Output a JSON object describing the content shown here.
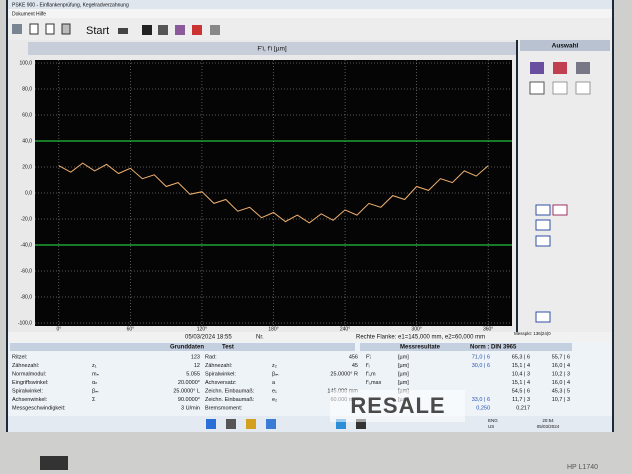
{
  "window": {
    "title": "PSKE 900 - Einflankenprüfung, Kegelradverzahnung",
    "menu": [
      "Dokument",
      "Hilfe"
    ],
    "start": "Start"
  },
  "chart_data": {
    "type": "line",
    "title": "F'i, f'i  [µm]",
    "x": [
      0,
      10,
      20,
      30,
      40,
      50,
      60,
      70,
      80,
      90,
      100,
      110,
      120,
      130,
      140,
      150,
      160,
      170,
      180,
      190,
      200,
      210,
      220,
      230,
      240,
      250,
      260,
      270,
      280,
      290,
      300,
      310,
      320,
      330,
      340,
      350,
      360
    ],
    "values": [
      21,
      16,
      23,
      17,
      22,
      15,
      19,
      11,
      14,
      5,
      8,
      -1,
      1,
      -8,
      -5,
      -14,
      -11,
      -19,
      -15,
      -22,
      -17,
      -23,
      -16,
      -21,
      -13,
      -17,
      -8,
      -11,
      -2,
      -5,
      5,
      2,
      11,
      8,
      17,
      13,
      21
    ],
    "color": "#f0b070",
    "tolerance_lines": [
      40,
      -40
    ],
    "tolerance_color": "#22c03a",
    "xlim": [
      -20,
      380
    ],
    "ylim": [
      -100,
      100
    ],
    "xticks": [
      {
        "value": 0,
        "label": "0°"
      },
      {
        "value": 60,
        "label": "60°"
      },
      {
        "value": 120,
        "label": "120°"
      },
      {
        "value": 180,
        "label": "180°"
      },
      {
        "value": 240,
        "label": "240°"
      },
      {
        "value": 300,
        "label": "300°"
      },
      {
        "value": 360,
        "label": "360°"
      }
    ],
    "yticks": [
      {
        "value": 100,
        "label": "100,0"
      },
      {
        "value": 80,
        "label": "80,0"
      },
      {
        "value": 60,
        "label": "60,0"
      },
      {
        "value": 40,
        "label": "40,0"
      },
      {
        "value": 20,
        "label": "20,0"
      },
      {
        "value": 0,
        "label": "0,0"
      },
      {
        "value": -20,
        "label": "-20,0"
      },
      {
        "value": -40,
        "label": "-40,0"
      },
      {
        "value": -60,
        "label": "-60,0"
      },
      {
        "value": -80,
        "label": "-80,0"
      },
      {
        "value": -100,
        "label": "-100,0"
      }
    ],
    "grid": true
  },
  "info": {
    "date": "05/03/2024    18:55",
    "nr": "Nr.",
    "flank": "Rechte Flanke: e1=145,000 mm, e2=60,000 mm",
    "messpkt": "Messpkt: 136|24|0"
  },
  "side_panel": {
    "title": "Auswahl"
  },
  "basic_data": {
    "header": [
      "Grunddaten",
      "Test"
    ],
    "rows": [
      {
        "l1": "Ritzel:",
        "v1": "123",
        "l2": "Rad:",
        "v2": "456"
      },
      {
        "l1": "Zähnezahl:",
        "s1": "z₁",
        "v1": "12",
        "l2": "Zähnezahl:",
        "s2": "z₂",
        "v2": "45"
      },
      {
        "l1": "Normalmodul:",
        "s1": "mₙ",
        "v1": "5.055",
        "l2": "Spiralwinkel:",
        "s2": "βₘ",
        "v2": "25.0000° R"
      },
      {
        "l1": "Eingriffswinkel:",
        "s1": "αₙ",
        "v1": "20.0000°",
        "l2": "Achsversatz:",
        "s2": "a"
      },
      {
        "l1": "Spiralwinkel:",
        "s1": "βₘ",
        "v1": "25.0000° L",
        "l2": "Zeichn. Einbaumaß:",
        "s2": "e₁",
        "v2": "145.000 mm"
      },
      {
        "l1": "Achsenwinkel:",
        "s1": "Σ",
        "v1": "90.0000°",
        "l2": "Zeichn. Einbaumaß:",
        "s2": "e₂",
        "v2": "60.000 mm"
      },
      {
        "l1": "Messgeschwindigkeit:",
        "v1": "3 U/min",
        "l2": "Bremsmoment:"
      }
    ]
  },
  "results": {
    "header": [
      "Messresultate",
      "Norm :  DIN 3965"
    ],
    "rows": [
      {
        "sym": "F'ᵢ",
        "unit": "[µm]",
        "m1": "71,0 | 6",
        "m2": "65,3 | 6",
        "m3": "55,7 | 6"
      },
      {
        "sym": "f'ᵢ",
        "unit": "[µm]",
        "m1": "30,0 | 6",
        "m2": "15,1 | 4",
        "m3": "16,0 | 4"
      },
      {
        "sym": "f'ᵢ,m",
        "unit": "[µm]",
        "m2": "10,4 | 3",
        "m3": "10,2 | 3"
      },
      {
        "sym": "f'ᵢ,max",
        "unit": "[µm]",
        "m2": "15,1 | 4",
        "m3": "16,0 | 4"
      },
      {
        "unit": "[µm]",
        "m2": "54,5 | 6",
        "m3": "45,3 | 5"
      },
      {
        "unit": "[µm]",
        "m1": "33,0 | 6",
        "m2": "11,7 | 3",
        "m3": "10,7 | 3"
      },
      {
        "m1": "0,250",
        "m2": "0,217"
      }
    ]
  },
  "taskbar": {
    "lang": [
      "ENG",
      "US"
    ],
    "time": "20:54",
    "date": "05/03/2024"
  },
  "monitor": {
    "model": "HP L1740"
  },
  "watermark": "RESALE"
}
